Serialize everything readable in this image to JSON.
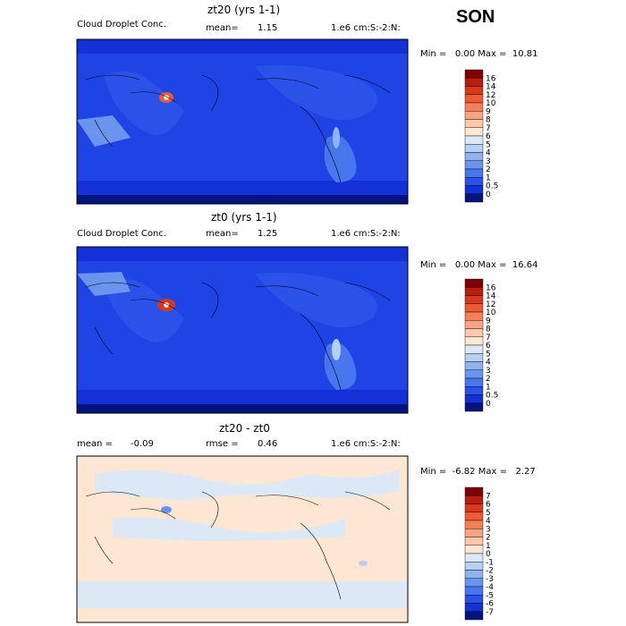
{
  "season": "SON",
  "panels": [
    {
      "title": "zt20 (yrs 1-1)",
      "variable": "Cloud Droplet Conc.",
      "stat1_label": "mean=",
      "stat1_value": "1.15",
      "units": "1.e6 cm:S:-2:N:",
      "minmax": "Min =   0.00 Max =  10.81",
      "colorbar_labels": [
        "16",
        "14",
        "12",
        "10",
        "9",
        "8",
        "7",
        "6",
        "5",
        "4",
        "3",
        "2",
        "1",
        "0.5",
        "0"
      ],
      "colors": [
        "#7f0000",
        "#b81e10",
        "#d8391b",
        "#ee5a33",
        "#f77f55",
        "#fba483",
        "#fdc8ad",
        "#fde6d2",
        "#dde8f7",
        "#b6d0f2",
        "#8eb3ee",
        "#6a94ee",
        "#4876ef",
        "#2a52e8",
        "#1431d8",
        "#05137f"
      ]
    },
    {
      "title": "zt0 (yrs 1-1)",
      "variable": "Cloud Droplet Conc.",
      "stat1_label": "mean=",
      "stat1_value": "1.25",
      "units": "1.e6 cm:S:-2:N:",
      "minmax": "Min =   0.00 Max =  16.64",
      "colorbar_labels": [
        "16",
        "14",
        "12",
        "10",
        "9",
        "8",
        "7",
        "6",
        "5",
        "4",
        "3",
        "2",
        "1",
        "0.5",
        "0"
      ],
      "colors": [
        "#7f0000",
        "#b81e10",
        "#d8391b",
        "#ee5a33",
        "#f77f55",
        "#fba483",
        "#fdc8ad",
        "#fde6d2",
        "#dde8f7",
        "#b6d0f2",
        "#8eb3ee",
        "#6a94ee",
        "#4876ef",
        "#2a52e8",
        "#1431d8",
        "#05137f"
      ]
    },
    {
      "title": "zt20 - zt0",
      "stat1_label": "mean =",
      "stat1_value": "-0.09",
      "stat2_label": "rmse =",
      "stat2_value": "0.46",
      "units": "1.e6 cm:S:-2:N:",
      "minmax": "Min =  -6.82 Max =   2.27",
      "colorbar_labels": [
        "7",
        "6",
        "5",
        "4",
        "3",
        "2",
        "1",
        "0",
        "-1",
        "-2",
        "-3",
        "-4",
        "-5",
        "-6",
        "-7"
      ],
      "colors": [
        "#7f0000",
        "#b81e10",
        "#d8391b",
        "#ee5a33",
        "#f77f55",
        "#fba483",
        "#fdc8ad",
        "#fde6d2",
        "#dde8f7",
        "#b6d0f2",
        "#8eb3ee",
        "#6a94ee",
        "#4876ef",
        "#2a52e8",
        "#1431d8",
        "#05137f"
      ]
    }
  ],
  "chart_data": [
    {
      "type": "heatmap",
      "title": "zt20 (yrs 1-1)",
      "subtitle": "Cloud Droplet Conc.",
      "mean": 1.15,
      "units": "1.e6 cm:S:-2:N:",
      "min": 0.0,
      "max": 10.81,
      "levels": [
        0,
        0.5,
        1,
        2,
        3,
        4,
        5,
        6,
        7,
        8,
        9,
        10,
        12,
        14,
        16
      ]
    },
    {
      "type": "heatmap",
      "title": "zt0 (yrs 1-1)",
      "subtitle": "Cloud Droplet Conc.",
      "mean": 1.25,
      "units": "1.e6 cm:S:-2:N:",
      "min": 0.0,
      "max": 16.64,
      "levels": [
        0,
        0.5,
        1,
        2,
        3,
        4,
        5,
        6,
        7,
        8,
        9,
        10,
        12,
        14,
        16
      ]
    },
    {
      "type": "heatmap",
      "title": "zt20 - zt0",
      "mean": -0.09,
      "rmse": 0.46,
      "units": "1.e6 cm:S:-2:N:",
      "min": -6.82,
      "max": 2.27,
      "levels": [
        -7,
        -6,
        -5,
        -4,
        -3,
        -2,
        -1,
        0,
        1,
        2,
        3,
        4,
        5,
        6,
        7
      ]
    }
  ]
}
